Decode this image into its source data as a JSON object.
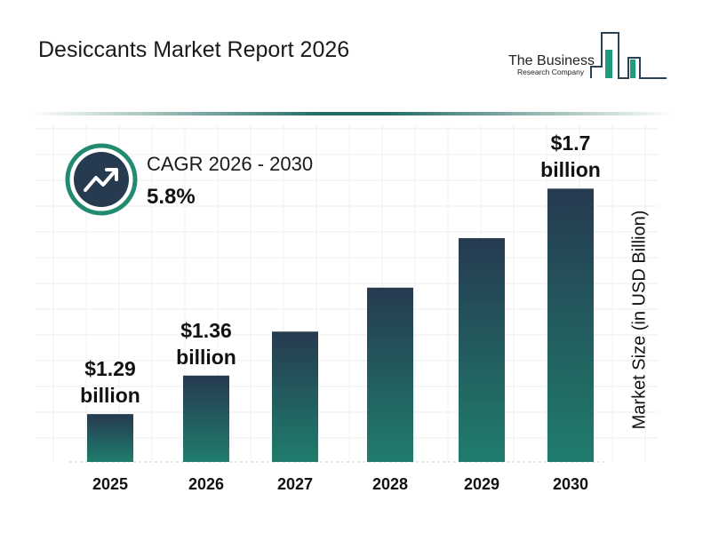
{
  "title": "Desiccants Market Report 2026",
  "logo": {
    "line1": "The Business",
    "line2": "Research Company"
  },
  "cagr": {
    "label": "CAGR 2026 - 2030",
    "value": "5.8%",
    "icon": "trend-up-icon"
  },
  "colors": {
    "bar_top": "#263a50",
    "bar_bottom": "#1f7d6c",
    "accent": "#236b62"
  },
  "chart_data": {
    "type": "bar",
    "categories": [
      "2025",
      "2026",
      "2027",
      "2028",
      "2029",
      "2030"
    ],
    "values": [
      1.29,
      1.36,
      1.44,
      1.52,
      1.61,
      1.7
    ],
    "data_labels": [
      {
        "index": 0,
        "line1": "$1.29",
        "line2": "billion"
      },
      {
        "index": 1,
        "line1": "$1.36",
        "line2": "billion"
      },
      {
        "index": 5,
        "line1": "$1.7",
        "line2": "billion"
      }
    ],
    "ylabel": "Market Size (in USD Billion)",
    "grid": true
  }
}
